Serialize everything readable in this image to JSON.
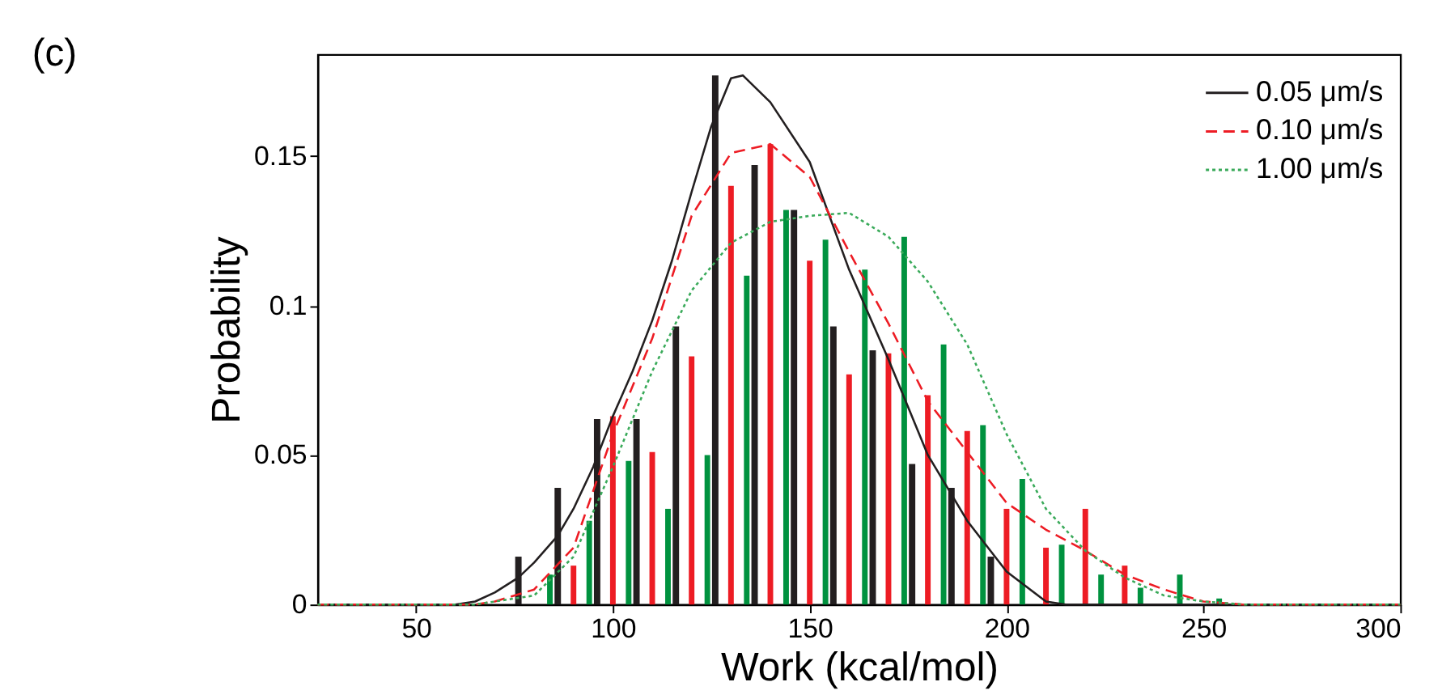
{
  "chart_data": {
    "type": "bar",
    "title": "(c)",
    "xlabel": "Work (kcal/mol)",
    "ylabel": "Probability",
    "xlim": [
      25,
      300
    ],
    "xticks": [
      50,
      100,
      150,
      200,
      250,
      300
    ],
    "ylim": [
      0,
      0.184
    ],
    "yticks": [
      0,
      0.05,
      0.1,
      0.15
    ],
    "grid": false,
    "legend": "top right",
    "series": [
      {
        "color": "#231f20",
        "x": [
          76,
          86,
          96,
          106,
          116,
          126,
          136,
          146,
          156,
          166,
          176,
          186,
          196
        ],
        "values": [
          0.016,
          0.039,
          0.062,
          0.062,
          0.093,
          0.177,
          0.147,
          0.132,
          0.093,
          0.085,
          0.047,
          0.039,
          0.016
        ]
      },
      {
        "color": "#ed1c24",
        "x": [
          90,
          100,
          110,
          120,
          130,
          140,
          150,
          160,
          170,
          180,
          190,
          200,
          210,
          220,
          230
        ],
        "values": [
          0.013,
          0.063,
          0.051,
          0.083,
          0.14,
          0.154,
          0.115,
          0.077,
          0.084,
          0.07,
          0.058,
          0.032,
          0.019,
          0.032,
          0.013
        ]
      },
      {
        "color": "#00923f",
        "x": [
          84,
          94,
          104,
          114,
          124,
          134,
          144,
          154,
          164,
          174,
          184,
          194,
          204,
          214,
          224,
          234,
          244,
          254
        ],
        "values": [
          0.01,
          0.028,
          0.048,
          0.032,
          0.05,
          0.11,
          0.132,
          0.122,
          0.112,
          0.123,
          0.087,
          0.06,
          0.042,
          0.02,
          0.01,
          0.0056,
          0.01,
          0.002
        ]
      },
      {
        "type": "line",
        "name": "0.05 μm/s",
        "color": "#231f20",
        "line_style": "solid",
        "x": [
          25,
          60,
          65,
          70,
          76,
          80,
          86,
          90,
          95,
          100,
          105,
          110,
          115,
          120,
          125,
          130,
          133,
          140,
          150,
          160,
          170,
          180,
          190,
          200,
          210,
          215,
          300
        ],
        "values": [
          0,
          0,
          0.001,
          0.004,
          0.009,
          0.014,
          0.023,
          0.032,
          0.046,
          0.063,
          0.078,
          0.095,
          0.115,
          0.138,
          0.16,
          0.176,
          0.177,
          0.168,
          0.148,
          0.112,
          0.082,
          0.05,
          0.028,
          0.011,
          0.001,
          0,
          0
        ]
      },
      {
        "type": "line",
        "name": "0.10 μm/s",
        "color": "#ed1c24",
        "line_style": "dashed",
        "x": [
          25,
          65,
          70,
          80,
          90,
          100,
          110,
          120,
          130,
          140,
          150,
          160,
          170,
          180,
          190,
          200,
          210,
          220,
          230,
          240,
          250,
          260,
          300
        ],
        "values": [
          0,
          0,
          0.001,
          0.005,
          0.019,
          0.057,
          0.089,
          0.13,
          0.151,
          0.154,
          0.143,
          0.118,
          0.094,
          0.068,
          0.051,
          0.034,
          0.025,
          0.018,
          0.01,
          0.005,
          0.001,
          0,
          0
        ]
      },
      {
        "type": "line",
        "name": "1.00 μm/s",
        "color": "#3aaa5a",
        "line_style": "dotted",
        "x": [
          25,
          65,
          70,
          80,
          90,
          100,
          110,
          120,
          130,
          140,
          150,
          160,
          170,
          180,
          190,
          200,
          210,
          220,
          230,
          240,
          250,
          260,
          300
        ],
        "values": [
          0,
          0,
          0.001,
          0.003,
          0.016,
          0.046,
          0.078,
          0.105,
          0.121,
          0.128,
          0.13,
          0.131,
          0.123,
          0.108,
          0.087,
          0.057,
          0.032,
          0.018,
          0.009,
          0.003,
          0.001,
          0,
          0
        ]
      }
    ]
  }
}
